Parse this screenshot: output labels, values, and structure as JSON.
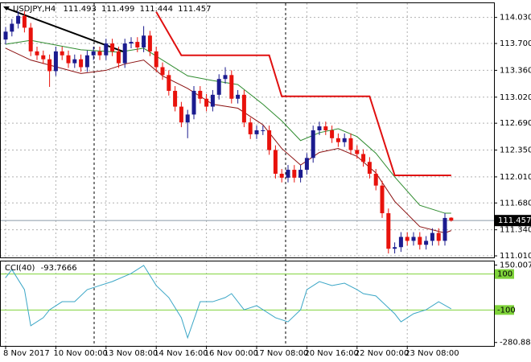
{
  "chart_data": [
    {
      "type": "candlestick",
      "title": "USDJPY,H4",
      "grid": true,
      "up_color": "#1b1b8f",
      "down_color": "#e8120c",
      "bid_line_color": "#8a9aa8",
      "ylim": [
        110.99,
        114.21
      ],
      "yticks": [
        {
          "value": 114.03,
          "label": "114.030"
        },
        {
          "value": 113.7,
          "label": "113.700"
        },
        {
          "value": 113.36,
          "label": "113.360"
        },
        {
          "value": 113.02,
          "label": "113.020"
        },
        {
          "value": 112.69,
          "label": "112.690"
        },
        {
          "value": 112.35,
          "label": "112.350"
        },
        {
          "value": 112.01,
          "label": "112.010"
        },
        {
          "value": 111.68,
          "label": "111.680"
        },
        {
          "value": 111.34,
          "label": "111.340"
        },
        {
          "value": 111.01,
          "label": "111.010"
        }
      ],
      "categories": [
        "8 Nov 2017",
        null,
        null,
        null,
        null,
        null,
        null,
        null,
        "10 Nov 00:00",
        null,
        null,
        null,
        null,
        null,
        null,
        null,
        "13 Nov 08:00",
        null,
        null,
        null,
        null,
        null,
        null,
        null,
        "14 Nov 16:00",
        null,
        null,
        null,
        null,
        null,
        null,
        null,
        "16 Nov 00:00",
        null,
        null,
        null,
        null,
        null,
        null,
        null,
        "17 Nov 08:00",
        null,
        null,
        null,
        null,
        null,
        null,
        null,
        "20 Nov 16:00",
        null,
        null,
        null,
        null,
        null,
        null,
        null,
        "22 Nov 00:00",
        null,
        null,
        null,
        null,
        null,
        null,
        null,
        "23 Nov 08:00",
        null,
        null,
        null,
        null,
        null,
        null,
        null
      ],
      "open": [
        113.75,
        113.85,
        113.95,
        114.05,
        113.9,
        113.6,
        113.55,
        113.5,
        113.35,
        113.6,
        113.55,
        113.45,
        113.5,
        113.4,
        113.55,
        113.6,
        113.55,
        113.7,
        113.6,
        113.45,
        113.7,
        113.72,
        113.65,
        113.8,
        113.6,
        113.4,
        113.3,
        113.1,
        112.9,
        112.7,
        112.8,
        113.1,
        113.0,
        112.9,
        113.05,
        113.25,
        113.3,
        113.0,
        113.05,
        112.7,
        112.55,
        112.6,
        112.6,
        112.35,
        112.05,
        112.0,
        112.1,
        112.0,
        112.1,
        112.25,
        112.6,
        112.65,
        112.6,
        112.5,
        112.45,
        112.5,
        112.35,
        112.3,
        112.2,
        112.05,
        111.9,
        111.55,
        111.1,
        111.12,
        111.25,
        111.2,
        111.25,
        111.15,
        111.2,
        111.3,
        111.2,
        111.493
      ],
      "high": [
        113.91,
        114.01,
        114.11,
        114.11,
        113.96,
        113.66,
        113.61,
        113.56,
        113.66,
        113.66,
        113.61,
        113.56,
        113.56,
        113.61,
        113.66,
        113.66,
        113.76,
        113.76,
        113.66,
        113.76,
        113.78,
        113.78,
        113.92,
        113.86,
        113.66,
        113.46,
        113.36,
        113.16,
        112.96,
        112.86,
        113.16,
        113.16,
        113.06,
        113.11,
        113.31,
        113.4,
        113.36,
        113.11,
        113.11,
        112.76,
        112.66,
        112.66,
        112.66,
        112.41,
        112.11,
        112.16,
        112.16,
        112.16,
        112.31,
        112.66,
        112.71,
        112.71,
        112.66,
        112.56,
        112.56,
        112.56,
        112.41,
        112.36,
        112.26,
        112.11,
        111.96,
        111.61,
        111.18,
        111.31,
        111.31,
        111.31,
        111.31,
        111.26,
        111.36,
        111.36,
        111.55,
        111.499
      ],
      "low": [
        113.69,
        113.79,
        113.89,
        113.84,
        113.54,
        113.49,
        113.44,
        113.15,
        113.29,
        113.49,
        113.39,
        113.39,
        113.34,
        113.34,
        113.49,
        113.49,
        113.49,
        113.54,
        113.39,
        113.39,
        113.64,
        113.59,
        113.59,
        113.54,
        113.34,
        113.24,
        113.04,
        112.84,
        112.64,
        112.5,
        112.74,
        112.94,
        112.84,
        112.84,
        112.99,
        113.19,
        112.94,
        112.94,
        112.64,
        112.49,
        112.49,
        112.54,
        112.29,
        111.99,
        111.94,
        111.94,
        111.94,
        111.94,
        112.04,
        112.19,
        112.54,
        112.54,
        112.44,
        112.39,
        112.39,
        112.29,
        112.24,
        112.14,
        111.99,
        111.84,
        111.49,
        111.04,
        111.04,
        111.06,
        111.14,
        111.14,
        111.09,
        111.09,
        111.14,
        111.14,
        111.14,
        111.444
      ],
      "close": [
        113.85,
        113.95,
        114.05,
        113.9,
        113.6,
        113.55,
        113.5,
        113.35,
        113.6,
        113.55,
        113.45,
        113.5,
        113.4,
        113.55,
        113.6,
        113.55,
        113.7,
        113.6,
        113.45,
        113.7,
        113.72,
        113.65,
        113.8,
        113.6,
        113.4,
        113.3,
        113.1,
        112.9,
        112.7,
        112.8,
        113.1,
        113.0,
        112.9,
        113.05,
        113.25,
        113.3,
        113.0,
        113.05,
        112.7,
        112.55,
        112.6,
        112.6,
        112.35,
        112.05,
        112.0,
        112.1,
        112.0,
        112.1,
        112.25,
        112.6,
        112.65,
        112.6,
        112.5,
        112.45,
        112.5,
        112.35,
        112.3,
        112.2,
        112.05,
        111.9,
        111.55,
        111.1,
        111.12,
        111.25,
        111.2,
        111.25,
        111.15,
        111.2,
        111.3,
        111.2,
        111.49,
        111.457
      ],
      "lines": [
        {
          "color": "#2e8b2e",
          "x": [
            0,
            4,
            12,
            18,
            22,
            25,
            29,
            33,
            37,
            41,
            44,
            47,
            50,
            53,
            56,
            59,
            62,
            66,
            70,
            71
          ],
          "values": [
            113.69,
            113.74,
            113.62,
            113.59,
            113.64,
            113.49,
            113.29,
            113.23,
            113.18,
            112.93,
            112.72,
            112.47,
            112.57,
            112.62,
            112.52,
            112.31,
            112.01,
            111.65,
            111.55,
            111.55
          ]
        },
        {
          "color": "#8b1010",
          "x": [
            0,
            4,
            12,
            16,
            19,
            22,
            25,
            29,
            33,
            37,
            41,
            44,
            47,
            50,
            53,
            56,
            59,
            62,
            66,
            70,
            71
          ],
          "values": [
            113.64,
            113.49,
            113.32,
            113.36,
            113.44,
            113.49,
            113.29,
            113.13,
            112.93,
            112.88,
            112.67,
            112.37,
            112.16,
            112.32,
            112.37,
            112.27,
            112.06,
            111.7,
            111.38,
            111.3,
            111.33
          ]
        },
        {
          "color": "#e01010",
          "x": [
            24,
            28,
            42,
            44,
            58,
            62,
            71
          ],
          "values": [
            114.1,
            113.55,
            113.55,
            113.03,
            113.03,
            112.03,
            112.03
          ]
        },
        {
          "color": "#000000",
          "x": [
            0,
            19
          ],
          "values": [
            114.15,
            113.59
          ]
        }
      ]
    },
    {
      "type": "line",
      "title": "CCI(40)",
      "grid": true,
      "ylim": [
        -300,
        170
      ],
      "yticks": [
        150.0078,
        -280.8831
      ],
      "levels": [
        100,
        -100
      ],
      "level_color": "#7fd33a",
      "series": [
        {
          "color": "#3aa6c6",
          "x": [
            0,
            1,
            3,
            4,
            6,
            7,
            9,
            11,
            13,
            15,
            17,
            20,
            22,
            24,
            26,
            28,
            29,
            31,
            33,
            35,
            36,
            38,
            40,
            43,
            45,
            47,
            48,
            50,
            52,
            54,
            56,
            57,
            59,
            62,
            63,
            65,
            67,
            69,
            71
          ],
          "values": [
            80,
            125,
            13,
            -188,
            -143,
            -99,
            -54,
            -54,
            13,
            36,
            58,
            103,
            148,
            36,
            -31,
            -143,
            -255,
            -54,
            -54,
            -31,
            -9,
            -99,
            -76,
            -143,
            -166,
            -99,
            13,
            58,
            36,
            49,
            13,
            -9,
            -22,
            -121,
            -166,
            -121,
            -99,
            -54,
            -93.7666
          ]
        }
      ]
    }
  ]
}
